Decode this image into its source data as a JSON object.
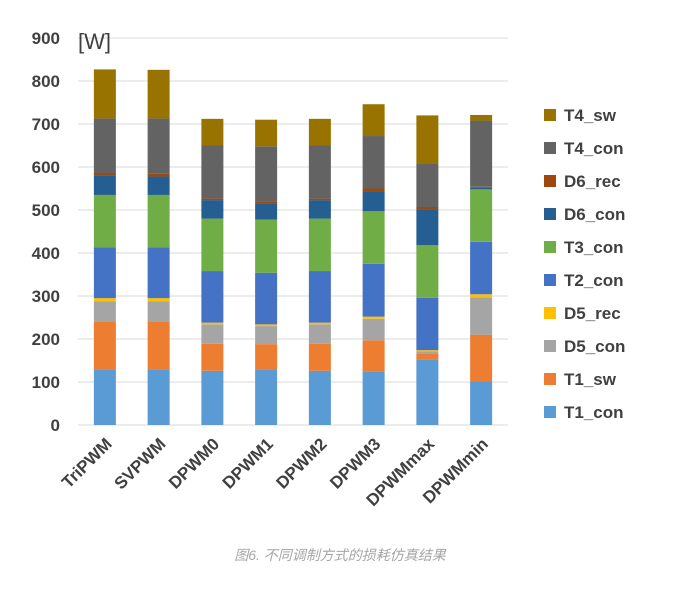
{
  "chart_data": {
    "type": "bar",
    "stacked": true,
    "unit_label": "[W]",
    "caption": "图6. 不同调制方式的损耗仿真结果",
    "ylim": [
      0,
      900
    ],
    "yticks": [
      0,
      100,
      200,
      300,
      400,
      500,
      600,
      700,
      800,
      900
    ],
    "grid": true,
    "legend_position": "right",
    "categories": [
      "TriPWM",
      "SVPWM",
      "DPWM0",
      "DPWM1",
      "DPWM2",
      "DPWM3",
      "DPWMmax",
      "DPWMmin"
    ],
    "series": [
      {
        "name": "T1_con",
        "color": "#5b9bd5",
        "values": [
          128,
          128,
          126,
          128,
          126,
          125,
          153,
          100
        ]
      },
      {
        "name": "T1_sw",
        "color": "#ed7d31",
        "values": [
          113,
          113,
          63,
          60,
          63,
          72,
          13,
          110
        ]
      },
      {
        "name": "D5_con",
        "color": "#a5a5a5",
        "values": [
          47,
          47,
          45,
          42,
          45,
          50,
          5,
          87
        ]
      },
      {
        "name": "D5_rec",
        "color": "#ffc000",
        "values": [
          7,
          7,
          4,
          4,
          4,
          5,
          3,
          7
        ]
      },
      {
        "name": "T2_con",
        "color": "#4472c4",
        "values": [
          118,
          118,
          120,
          120,
          120,
          123,
          122,
          122
        ]
      },
      {
        "name": "T3_con",
        "color": "#70ad47",
        "values": [
          122,
          122,
          122,
          124,
          122,
          122,
          122,
          122
        ]
      },
      {
        "name": "D6_con",
        "color": "#255e91",
        "values": [
          45,
          43,
          43,
          38,
          43,
          47,
          83,
          5
        ]
      },
      {
        "name": "D6_rec",
        "color": "#9e480e",
        "values": [
          6,
          6,
          4,
          4,
          4,
          6,
          6,
          1
        ]
      },
      {
        "name": "T4_con",
        "color": "#636363",
        "values": [
          127,
          129,
          123,
          128,
          123,
          122,
          100,
          154
        ]
      },
      {
        "name": "T4_sw",
        "color": "#997300",
        "values": [
          114,
          113,
          62,
          62,
          62,
          74,
          113,
          13
        ]
      }
    ]
  }
}
